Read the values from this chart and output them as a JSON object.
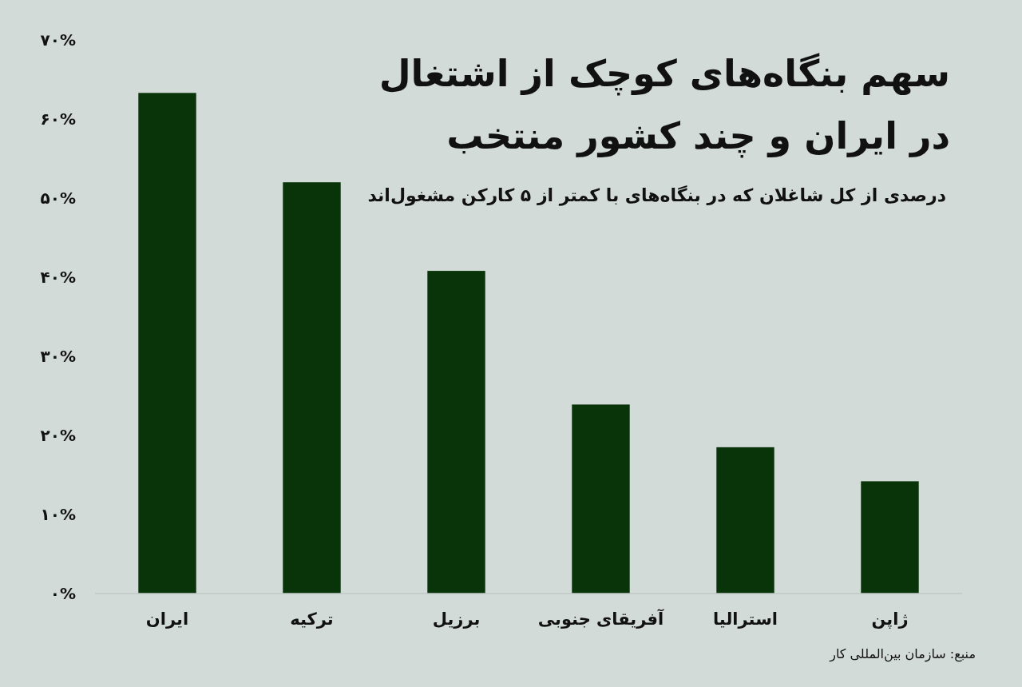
{
  "chart_data": {
    "type": "bar",
    "title": "سهم بنگاه‌های کوچک از اشتغال\nدر ایران و چند کشور منتخب",
    "subtitle": "درصدی از کل شاغلان که در بنگاه‌های با کمتر از ۵ کارکن مشغول‌اند",
    "categories": [
      "ایران",
      "ترکیه",
      "برزیل",
      "آفریقای جنوبی",
      "استرالیا",
      "ژاپن"
    ],
    "values": [
      63.3,
      52.0,
      40.8,
      23.9,
      18.5,
      14.2
    ],
    "color": "#093409",
    "ylim": [
      0,
      70
    ],
    "yticks": [
      {
        "value": 0,
        "label": "۰%"
      },
      {
        "value": 10,
        "label": "۱۰%"
      },
      {
        "value": 20,
        "label": "۲۰%"
      },
      {
        "value": 30,
        "label": "۳۰%"
      },
      {
        "value": 40,
        "label": "۴۰%"
      },
      {
        "value": 50,
        "label": "۵۰%"
      },
      {
        "value": 60,
        "label": "۶۰%"
      },
      {
        "value": 70,
        "label": "۷۰%"
      }
    ],
    "annotations": [
      "منبع: سازمان بین‌المللی کار"
    ]
  }
}
